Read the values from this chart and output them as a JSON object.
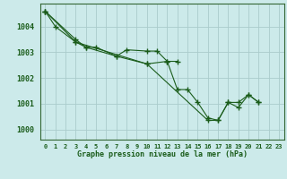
{
  "title": "Graphe pression niveau de la mer (hPa)",
  "background_color": "#cceaea",
  "grid_color": "#aacccc",
  "line_color": "#1a5c1a",
  "ylim": [
    999.6,
    1004.9
  ],
  "yticks": [
    1000,
    1001,
    1002,
    1003,
    1004
  ],
  "line1_x": [
    0,
    1,
    3,
    4,
    5,
    7,
    8,
    10,
    11,
    12,
    13
  ],
  "line1_y": [
    1004.6,
    1004.0,
    1003.4,
    1003.2,
    1003.2,
    1002.85,
    1003.1,
    1003.05,
    1003.05,
    1002.65,
    1002.65
  ],
  "line2_x": [
    0,
    3,
    4,
    7,
    10,
    12,
    13,
    14,
    15,
    16,
    17,
    18,
    19,
    20,
    21
  ],
  "line2_y": [
    1004.6,
    1003.5,
    1003.2,
    1002.85,
    1002.55,
    1002.65,
    1001.55,
    1001.55,
    1001.05,
    1000.45,
    1000.35,
    1001.05,
    1001.05,
    1001.35,
    1001.05
  ],
  "line3_x": [
    0,
    3,
    10,
    16,
    17,
    18,
    19,
    20,
    21
  ],
  "line3_y": [
    1004.6,
    1003.4,
    1002.55,
    1000.35,
    1000.35,
    1001.05,
    1000.85,
    1001.35,
    1001.05
  ],
  "x_labels": [
    "0",
    "1",
    "2",
    "3",
    "4",
    "5",
    "6",
    "7",
    "8",
    "9",
    "10",
    "11",
    "12",
    "13",
    "14",
    "15",
    "16",
    "17",
    "18",
    "19",
    "20",
    "21",
    "22",
    "23"
  ]
}
